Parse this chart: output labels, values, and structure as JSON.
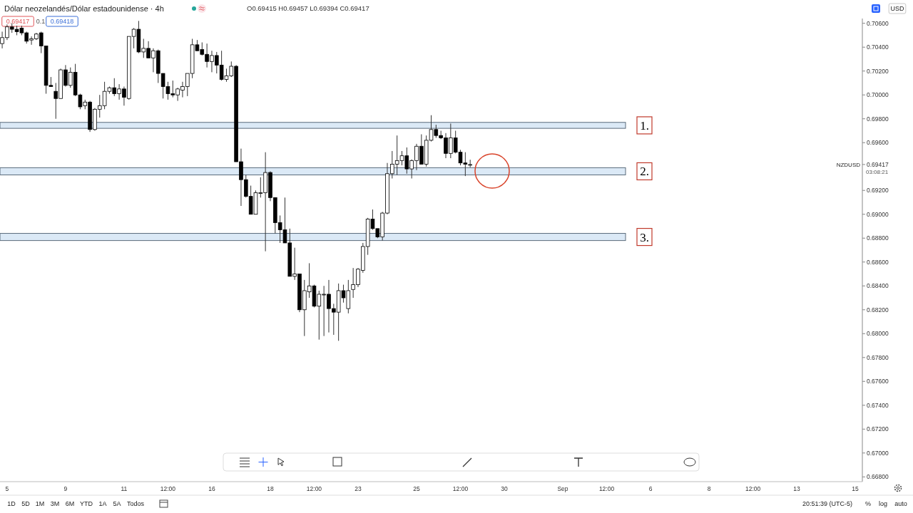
{
  "chart_data": {
    "type": "candlestick",
    "title": "Dólar neozelandés/Dólar estadounidense · 4h",
    "subtitle": "O0.69415 H0.69457 L0.69394 C0.69417",
    "categories": [
      null,
      "5",
      null,
      null,
      null,
      null,
      null,
      null,
      null,
      null,
      null,
      null,
      null,
      "9",
      null,
      null,
      null,
      null,
      null,
      null,
      null,
      null,
      null,
      null,
      null,
      "11",
      null,
      null,
      null,
      null,
      null,
      null,
      null,
      null,
      "12:00",
      null,
      null,
      null,
      null,
      null,
      null,
      null,
      null,
      "16",
      null,
      null,
      null,
      null,
      null,
      null,
      null,
      null,
      null,
      null,
      null,
      "18",
      null,
      null,
      null,
      null,
      null,
      null,
      null,
      null,
      "12:00",
      null,
      null,
      null,
      null,
      null,
      null,
      null,
      null,
      "23",
      null,
      null,
      null,
      null,
      null,
      null,
      null,
      null,
      null,
      null,
      null,
      "25",
      null,
      null,
      null,
      null,
      null,
      null,
      null,
      null,
      "12:00",
      null,
      null,
      null,
      null,
      null,
      null,
      null,
      null,
      "30",
      null,
      null,
      null,
      null,
      null,
      null,
      null,
      null,
      null,
      null,
      null,
      "Sep",
      null,
      null,
      null,
      null,
      null,
      null,
      null,
      null,
      "12:00",
      null,
      null,
      null,
      null,
      null,
      null,
      null,
      null,
      "6",
      null,
      null,
      null,
      null,
      null,
      null,
      null,
      null,
      null,
      null,
      null,
      "8",
      null,
      null,
      null,
      null,
      null,
      null,
      null,
      null,
      "12:00",
      null,
      null,
      null,
      null,
      null,
      null,
      null,
      null,
      "13",
      null,
      null,
      null,
      null,
      null,
      null,
      null,
      null,
      null,
      null,
      null,
      "15",
      null
    ],
    "ohlc": [
      [
        0.7043,
        0.7053,
        0.7039,
        0.7048
      ],
      [
        0.7048,
        0.7059,
        0.7046,
        0.7057
      ],
      [
        0.7057,
        0.706,
        0.7052,
        0.7055
      ],
      [
        0.7055,
        0.7058,
        0.705,
        0.7053
      ],
      [
        0.7056,
        0.7058,
        0.705,
        0.7052
      ],
      [
        0.7052,
        0.7053,
        0.7043,
        0.7045
      ],
      [
        0.7046,
        0.7049,
        0.7042,
        0.7047
      ],
      [
        0.7047,
        0.7052,
        0.7046,
        0.7051
      ],
      [
        0.7052,
        0.7053,
        0.7035,
        0.7041
      ],
      [
        0.7041,
        0.7041,
        0.7001,
        0.7008
      ],
      [
        0.7008,
        0.7015,
        0.7007,
        0.7007
      ],
      [
        0.7003,
        0.701,
        0.698,
        0.6997
      ],
      [
        0.6997,
        0.7022,
        0.6997,
        0.7021
      ],
      [
        0.7021,
        0.7025,
        0.7007,
        0.7008
      ],
      [
        0.7008,
        0.7023,
        0.7006,
        0.7019
      ],
      [
        0.7019,
        0.7026,
        0.6999,
        0.7
      ],
      [
        0.7,
        0.7001,
        0.6988,
        0.699
      ],
      [
        0.6991,
        0.6996,
        0.6988,
        0.6994
      ],
      [
        0.6994,
        0.6995,
        0.6969,
        0.6971
      ],
      [
        0.6971,
        0.6989,
        0.697,
        0.6988
      ],
      [
        0.6988,
        0.7,
        0.6981,
        0.6991
      ],
      [
        0.6991,
        0.7011,
        0.6988,
        0.7003
      ],
      [
        0.7003,
        0.7007,
        0.7001,
        0.7006
      ],
      [
        0.7006,
        0.7014,
        0.6999,
        0.7001
      ],
      [
        0.7001,
        0.7009,
        0.6996,
        0.7005
      ],
      [
        0.7005,
        0.7007,
        0.6991,
        0.6998
      ],
      [
        0.6997,
        0.7049,
        0.6996,
        0.7049
      ],
      [
        0.7049,
        0.7056,
        0.7039,
        0.7055
      ],
      [
        0.7055,
        0.7062,
        0.7035,
        0.7036
      ],
      [
        0.7036,
        0.7047,
        0.7031,
        0.7039
      ],
      [
        0.7039,
        0.7045,
        0.7031,
        0.7031
      ],
      [
        0.7031,
        0.7039,
        0.7019,
        0.7037
      ],
      [
        0.7037,
        0.7038,
        0.701,
        0.7018
      ],
      [
        0.7018,
        0.7018,
        0.6997,
        0.7007
      ],
      [
        0.7007,
        0.7011,
        0.6996,
        0.7001
      ],
      [
        0.7001,
        0.7012,
        0.6998,
        0.7
      ],
      [
        0.7,
        0.7006,
        0.6995,
        0.7005
      ],
      [
        0.7004,
        0.7011,
        0.6998,
        0.7007
      ],
      [
        0.7007,
        0.7018,
        0.6999,
        0.7018
      ],
      [
        0.7018,
        0.7047,
        0.7014,
        0.7042
      ],
      [
        0.7042,
        0.7046,
        0.7037,
        0.7037
      ],
      [
        0.7038,
        0.7044,
        0.7033,
        0.7034
      ],
      [
        0.7034,
        0.7043,
        0.7023,
        0.7028
      ],
      [
        0.7028,
        0.7037,
        0.7019,
        0.7033
      ],
      [
        0.7033,
        0.7036,
        0.7018,
        0.7025
      ],
      [
        0.7025,
        0.7037,
        0.7012,
        0.7013
      ],
      [
        0.7013,
        0.7022,
        0.7011,
        0.7016
      ],
      [
        0.7016,
        0.7028,
        0.7015,
        0.7024
      ],
      [
        0.7024,
        0.7025,
        0.6944,
        0.6944
      ],
      [
        0.6944,
        0.6955,
        0.6907,
        0.6929
      ],
      [
        0.6929,
        0.6933,
        0.6914,
        0.6915
      ],
      [
        0.6915,
        0.6924,
        0.69,
        0.69
      ],
      [
        0.69,
        0.692,
        0.69,
        0.6918
      ],
      [
        0.6918,
        0.6931,
        0.6914,
        0.6918
      ],
      [
        0.6918,
        0.6952,
        0.6869,
        0.6935
      ],
      [
        0.6935,
        0.6936,
        0.6911,
        0.6914
      ],
      [
        0.6914,
        0.6914,
        0.6884,
        0.6893
      ],
      [
        0.6893,
        0.6899,
        0.6876,
        0.6887
      ],
      [
        0.6887,
        0.6914,
        0.6876,
        0.6876
      ],
      [
        0.6876,
        0.6888,
        0.6848,
        0.6848
      ],
      [
        0.6848,
        0.6872,
        0.6845,
        0.685
      ],
      [
        0.685,
        0.685,
        0.6818,
        0.682
      ],
      [
        0.682,
        0.6845,
        0.6798,
        0.6836
      ],
      [
        0.6835,
        0.6859,
        0.683,
        0.684
      ],
      [
        0.684,
        0.6841,
        0.6822,
        0.6823
      ],
      [
        0.6823,
        0.6836,
        0.6795,
        0.6833
      ],
      [
        0.6833,
        0.684,
        0.6798,
        0.6833
      ],
      [
        0.6833,
        0.6845,
        0.6801,
        0.6821
      ],
      [
        0.6821,
        0.6825,
        0.6799,
        0.6818
      ],
      [
        0.6818,
        0.6842,
        0.6794,
        0.6836
      ],
      [
        0.6836,
        0.6841,
        0.6826,
        0.683
      ],
      [
        0.6821,
        0.6845,
        0.6817,
        0.6836
      ],
      [
        0.6837,
        0.6855,
        0.683,
        0.6841
      ],
      [
        0.6841,
        0.6855,
        0.6839,
        0.6854
      ],
      [
        0.6853,
        0.6876,
        0.6851,
        0.6873
      ],
      [
        0.6873,
        0.6897,
        0.6866,
        0.6896
      ],
      [
        0.6896,
        0.6904,
        0.6887,
        0.6888
      ],
      [
        0.6888,
        0.6888,
        0.688,
        0.6881
      ],
      [
        0.6881,
        0.6902,
        0.6878,
        0.6901
      ],
      [
        0.6901,
        0.6943,
        0.69,
        0.6934
      ],
      [
        0.6934,
        0.6953,
        0.693,
        0.6942
      ],
      [
        0.6942,
        0.6966,
        0.6933,
        0.6945
      ],
      [
        0.6945,
        0.6953,
        0.6941,
        0.6949
      ],
      [
        0.6949,
        0.6956,
        0.6934,
        0.6938
      ],
      [
        0.6938,
        0.6946,
        0.693,
        0.6945
      ],
      [
        0.6945,
        0.6959,
        0.6937,
        0.6957
      ],
      [
        0.6957,
        0.6967,
        0.6942,
        0.6942
      ],
      [
        0.6942,
        0.6966,
        0.694,
        0.6962
      ],
      [
        0.6962,
        0.6983,
        0.6961,
        0.6971
      ],
      [
        0.6971,
        0.6975,
        0.6964,
        0.6966
      ],
      [
        0.6966,
        0.697,
        0.6963,
        0.6964
      ],
      [
        0.6964,
        0.6968,
        0.6947,
        0.6951
      ],
      [
        0.6951,
        0.6976,
        0.6947,
        0.6964
      ],
      [
        0.6964,
        0.697,
        0.6951,
        0.6952
      ],
      [
        0.6952,
        0.6954,
        0.6941,
        0.6943
      ],
      [
        0.6943,
        0.6952,
        0.6932,
        0.6942
      ],
      [
        0.69415,
        0.69457,
        0.69394,
        0.69417
      ],
      null,
      null,
      null,
      null,
      null,
      null,
      null,
      null,
      null,
      null,
      null,
      null,
      null,
      null,
      null,
      null,
      null,
      null,
      null,
      null,
      null,
      null,
      null,
      null,
      null,
      null,
      null,
      null,
      null,
      null,
      null,
      null,
      null,
      null,
      null,
      null,
      null,
      null,
      null,
      null,
      null,
      null,
      null,
      null,
      null,
      null,
      null,
      null,
      null,
      null,
      null,
      null,
      null,
      null,
      null,
      null,
      null,
      null,
      null,
      null,
      null,
      null,
      null,
      null,
      null,
      null,
      null,
      null,
      null,
      null,
      null,
      null,
      null,
      null,
      null,
      null,
      null,
      null,
      null,
      null
    ],
    "ylim": [
      0.6676,
      0.7064
    ],
    "yticks": [
      {
        "value": 0.69417,
        "label": "0.69417"
      },
      {
        "value": 0.706,
        "label": "0.70600"
      },
      {
        "value": 0.704,
        "label": "0.70400"
      },
      {
        "value": 0.702,
        "label": "0.70200"
      },
      {
        "value": 0.7,
        "label": "0.70000"
      },
      {
        "value": 0.698,
        "label": "0.69800"
      },
      {
        "value": 0.696,
        "label": "0.69600"
      },
      {
        "value": 0.692,
        "label": "0.69200"
      },
      {
        "value": 0.69,
        "label": "0.69000"
      },
      {
        "value": 0.688,
        "label": "0.68800"
      },
      {
        "value": 0.686,
        "label": "0.68600"
      },
      {
        "value": 0.684,
        "label": "0.68400"
      },
      {
        "value": 0.682,
        "label": "0.68200"
      },
      {
        "value": 0.68,
        "label": "0.68000"
      },
      {
        "value": 0.678,
        "label": "0.67800"
      },
      {
        "value": 0.676,
        "label": "0.67600"
      },
      {
        "value": 0.674,
        "label": "0.67400"
      },
      {
        "value": 0.672,
        "label": "0.67200"
      },
      {
        "value": 0.67,
        "label": "0.67000"
      },
      {
        "value": 0.668,
        "label": "0.66800"
      }
    ],
    "bands": [
      {
        "axis": "y",
        "from": 0.6972,
        "to": 0.6977,
        "label": "1.",
        "color": "#dbe9f6"
      },
      {
        "axis": "y",
        "from": 0.6933,
        "to": 0.6939,
        "label": "2.",
        "color": "#dbe9f6"
      },
      {
        "axis": "y",
        "from": 0.6878,
        "to": 0.6884,
        "label": "3.",
        "color": "#dbe9f6"
      }
    ],
    "annotations": [
      "0.69417",
      "0.1",
      "0.69418",
      "1D",
      "5D",
      "1M",
      "3M",
      "6M",
      "YTD",
      "1A",
      "5A",
      "Todos",
      "20:51:39 (UTC-5)",
      "%",
      "log",
      "auto",
      "USD",
      "NZDUSD",
      "03:08:21"
    ]
  }
}
